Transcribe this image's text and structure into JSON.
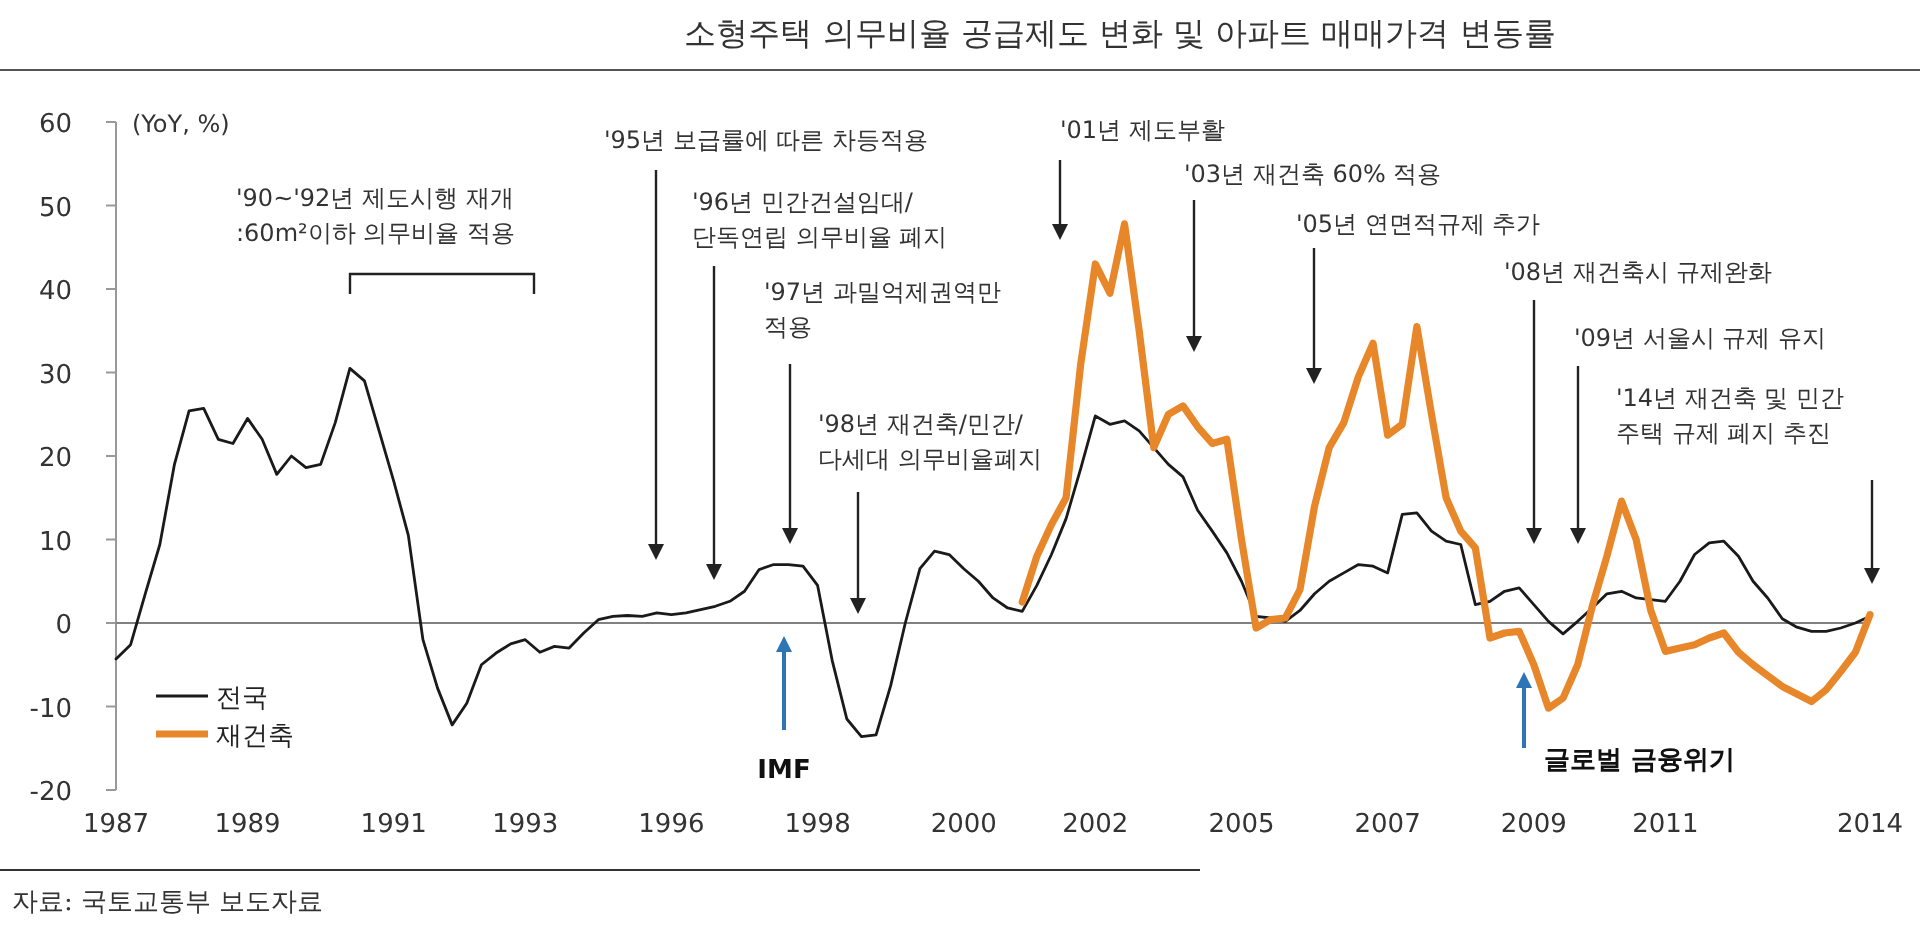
{
  "chart_data": {
    "type": "line",
    "title": "소형주택 의무비율 공급제도 변화 및 아파트 매매가격 변동률",
    "ylabel": "(YoY, %)",
    "categories": [
      "1987",
      null,
      null,
      null,
      null,
      null,
      null,
      null,
      null,
      "1989",
      null,
      null,
      null,
      null,
      null,
      null,
      null,
      null,
      null,
      "1991",
      null,
      null,
      null,
      null,
      null,
      null,
      null,
      null,
      "1993",
      null,
      null,
      null,
      null,
      null,
      null,
      null,
      null,
      null,
      "1996",
      null,
      null,
      null,
      null,
      null,
      null,
      null,
      null,
      null,
      "1998",
      null,
      null,
      null,
      null,
      null,
      null,
      null,
      null,
      null,
      "2000",
      null,
      null,
      null,
      null,
      null,
      null,
      null,
      null,
      "2002",
      null,
      null,
      null,
      null,
      null,
      null,
      null,
      null,
      null,
      "2005",
      null,
      null,
      null,
      null,
      null,
      null,
      null,
      null,
      null,
      "2007",
      null,
      null,
      null,
      null,
      null,
      null,
      null,
      null,
      null,
      "2009",
      null,
      null,
      null,
      null,
      null,
      null,
      null,
      null,
      "2011",
      null,
      null,
      null,
      null,
      null,
      null,
      null,
      null,
      null,
      null,
      null,
      null,
      null,
      "2014"
    ],
    "series": [
      {
        "name": "전국",
        "color": "#1a1a1a",
        "values": [
          -4.3,
          -2.6,
          3.5,
          9.4,
          19,
          25.4,
          25.7,
          22,
          21.5,
          24.5,
          22,
          17.8,
          20,
          18.6,
          19,
          24,
          30.5,
          29,
          23,
          17,
          10.5,
          -2,
          -7.8,
          -12.2,
          -9.6,
          -5,
          -3.6,
          -2.5,
          -2,
          -3.5,
          -2.8,
          -3,
          -1.2,
          0.4,
          0.8,
          0.9,
          0.8,
          1.2,
          1,
          1.2,
          1.6,
          2,
          2.6,
          3.8,
          6.4,
          7,
          7,
          6.8,
          4.5,
          -4.5,
          -11.5,
          -13.6,
          -13.4,
          -7.5,
          0,
          6.5,
          8.6,
          8.2,
          6.5,
          5,
          3,
          1.8,
          1.4,
          4.5,
          8.2,
          12.5,
          18.5,
          24.8,
          23.8,
          24.2,
          23,
          21,
          19,
          17.5,
          13.5,
          11,
          8.4,
          5,
          0.8,
          0.6,
          0.2,
          1.5,
          3.5,
          5,
          6,
          7,
          6.8,
          6,
          13,
          13.2,
          11,
          9.8,
          9.4,
          2.2,
          2.6,
          3.8,
          4.2,
          2.2,
          0.2,
          -1.3,
          0.2,
          1.8,
          3.5,
          3.8,
          3,
          2.8,
          2.6,
          5,
          8.2,
          9.6,
          9.8,
          8,
          5,
          3,
          0.5,
          -0.5,
          -1,
          -1,
          -0.6,
          0,
          0.8
        ]
      },
      {
        "name": "재건축",
        "color": "#e8872a",
        "values": [
          null,
          null,
          null,
          null,
          null,
          null,
          null,
          null,
          null,
          null,
          null,
          null,
          null,
          null,
          null,
          null,
          null,
          null,
          null,
          null,
          null,
          null,
          null,
          null,
          null,
          null,
          null,
          null,
          null,
          null,
          null,
          null,
          null,
          null,
          null,
          null,
          null,
          null,
          null,
          null,
          null,
          null,
          null,
          null,
          null,
          null,
          null,
          null,
          null,
          null,
          null,
          null,
          null,
          null,
          null,
          null,
          null,
          null,
          null,
          null,
          null,
          null,
          2.5,
          8,
          11.8,
          15,
          31,
          43,
          39.5,
          47.8,
          35,
          21,
          25,
          26,
          23.5,
          21.5,
          22,
          10,
          -0.6,
          0.4,
          0.6,
          4,
          14,
          21,
          24,
          29.5,
          33.5,
          22.5,
          23.8,
          35.5,
          25,
          15,
          11,
          9,
          -1.8,
          -1.2,
          -1,
          -5,
          -10.2,
          -9,
          -5,
          2,
          8,
          14.6,
          10,
          1.5,
          -3.4,
          -3,
          -2.6,
          -1.8,
          -1.2,
          -3.5,
          -5,
          -6.3,
          -7.6,
          -8.5,
          -9.4,
          -8,
          -5.8,
          -3.5,
          1
        ]
      }
    ],
    "ylim": [
      -20,
      60
    ],
    "yticks": [
      -20,
      -10,
      0,
      10,
      20,
      30,
      40,
      50,
      60
    ],
    "ref_lines": [
      {
        "axis": "y",
        "value": 0,
        "color": "#808080"
      }
    ],
    "legend": "bottom left",
    "annotations": [
      "'90~'92년 제도시행 재개\n:60m²이하 의무비율 적용",
      "'95년 보급률에 따른 차등적용",
      "'96년 민간건설임대/\n단독연립 의무비율 폐지",
      "'97년 과밀억제권역만\n적용",
      "'98년 재건축/민간/\n다세대 의무비율폐지",
      "'01년 제도부활",
      "'03년 재건축 60% 적용",
      "'05년 연면적규제 추가",
      "'08년 재건축시 규제완화",
      "'09년 서울시 규제 유지",
      "'14년 재건축 및 민간\n주택 규제 폐지 추진",
      "IMF",
      "글로벌 금융위기",
      "자료: 국토교통부 보도자료"
    ]
  }
}
